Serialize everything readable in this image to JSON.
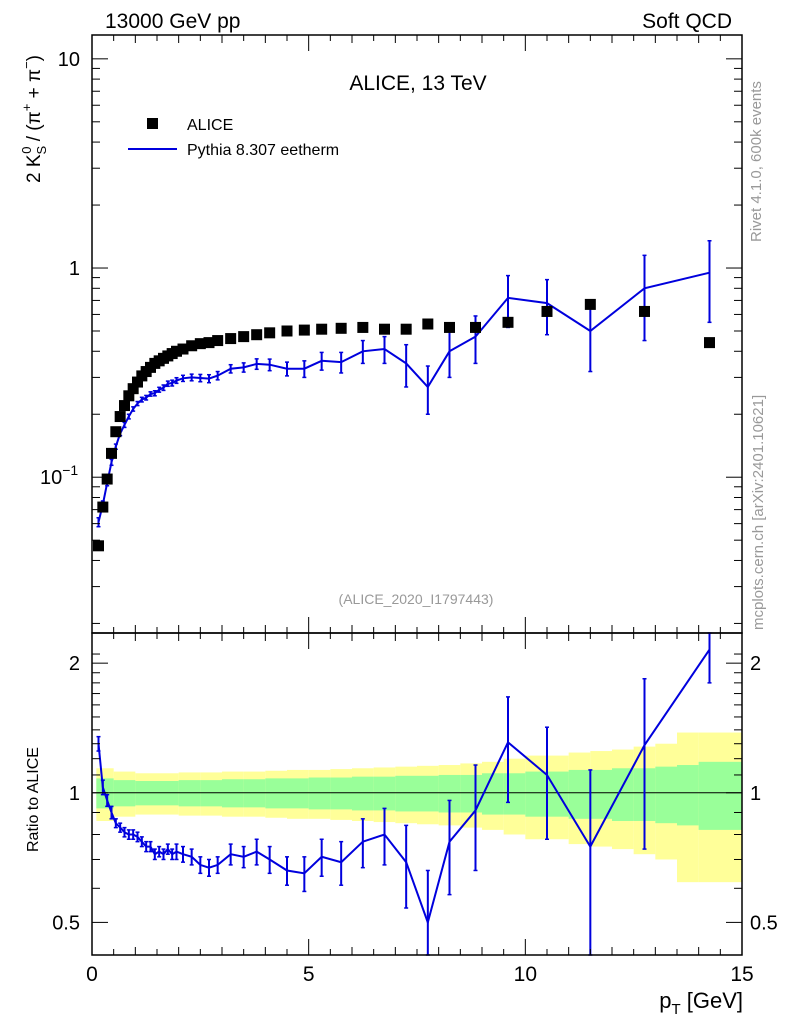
{
  "header": {
    "left": "13000 GeV pp",
    "right": "Soft QCD"
  },
  "side_labels": {
    "rivet": "Rivet 4.1.0,  600k events",
    "mcplots": "mcplots.cern.ch [arXiv:2401.10621]"
  },
  "colors": {
    "data": "#000000",
    "mc": "#0000dd",
    "band_inner": "#99ff99",
    "band_outer": "#ffff99"
  },
  "chart_data": [
    {
      "type": "scatter",
      "panel": "main",
      "title": "ALICE, 13 TeV",
      "analysis_id": "(ALICE_2020_I1797443)",
      "ylabel": "2 K_S^0 / (π+ + π−)",
      "ylabel_parts": {
        "main": "2 K",
        "sub": "S",
        "sup": "0",
        "rest": " / (π",
        "plus_sup": "+",
        "mid": " + π",
        "minus_sup": "−",
        "end": ")"
      },
      "yscale": "log",
      "ylim": [
        0.018,
        13
      ],
      "xlim": [
        0,
        15
      ],
      "y_ticks": [
        {
          "value": 0.1,
          "label": "10",
          "sup": "−1"
        },
        {
          "value": 1,
          "label": "1",
          "sup": ""
        },
        {
          "value": 10,
          "label": "10",
          "sup": ""
        }
      ],
      "legend": {
        "position": "top-left",
        "entries": [
          {
            "label": "ALICE",
            "style": "square-marker"
          },
          {
            "label": "Pythia 8.307 eetherm",
            "style": "line"
          }
        ]
      },
      "series": [
        {
          "name": "ALICE",
          "x": [
            0.15,
            0.25,
            0.35,
            0.45,
            0.55,
            0.65,
            0.75,
            0.85,
            0.95,
            1.05,
            1.15,
            1.25,
            1.35,
            1.45,
            1.55,
            1.65,
            1.75,
            1.85,
            1.95,
            2.1,
            2.3,
            2.5,
            2.7,
            2.9,
            3.2,
            3.5,
            3.8,
            4.1,
            4.5,
            4.9,
            5.3,
            5.75,
            6.25,
            6.75,
            7.25,
            7.75,
            8.25,
            8.85,
            9.6,
            10.5,
            11.5,
            12.75,
            14.25
          ],
          "y": [
            0.047,
            0.072,
            0.098,
            0.13,
            0.165,
            0.195,
            0.22,
            0.245,
            0.265,
            0.285,
            0.305,
            0.32,
            0.335,
            0.35,
            0.36,
            0.37,
            0.38,
            0.39,
            0.4,
            0.41,
            0.425,
            0.435,
            0.44,
            0.45,
            0.46,
            0.47,
            0.48,
            0.49,
            0.5,
            0.505,
            0.51,
            0.515,
            0.52,
            0.51,
            0.51,
            0.54,
            0.52,
            0.52,
            0.55,
            0.62,
            0.67,
            0.62,
            0.44
          ]
        },
        {
          "name": "Pythia 8.307 eetherm",
          "x": [
            0.15,
            0.25,
            0.35,
            0.45,
            0.55,
            0.65,
            0.75,
            0.85,
            0.95,
            1.05,
            1.15,
            1.25,
            1.35,
            1.45,
            1.55,
            1.65,
            1.75,
            1.85,
            1.95,
            2.1,
            2.3,
            2.5,
            2.7,
            2.9,
            3.2,
            3.5,
            3.8,
            4.1,
            4.5,
            4.9,
            5.3,
            5.75,
            6.25,
            6.75,
            7.25,
            7.75,
            8.25,
            8.85,
            9.6,
            10.5,
            11.5,
            12.75,
            14.25
          ],
          "y": [
            0.061,
            0.074,
            0.094,
            0.118,
            0.14,
            0.162,
            0.178,
            0.195,
            0.212,
            0.225,
            0.235,
            0.24,
            0.25,
            0.252,
            0.262,
            0.268,
            0.28,
            0.282,
            0.29,
            0.297,
            0.3,
            0.298,
            0.296,
            0.306,
            0.33,
            0.335,
            0.348,
            0.345,
            0.33,
            0.33,
            0.36,
            0.355,
            0.4,
            0.41,
            0.35,
            0.27,
            0.4,
            0.47,
            0.72,
            0.68,
            0.5,
            0.8,
            0.95
          ],
          "yerr": [
            0.003,
            0.003,
            0.003,
            0.004,
            0.004,
            0.004,
            0.005,
            0.005,
            0.005,
            0.005,
            0.006,
            0.006,
            0.006,
            0.007,
            0.007,
            0.008,
            0.008,
            0.009,
            0.009,
            0.01,
            0.011,
            0.012,
            0.013,
            0.014,
            0.015,
            0.017,
            0.02,
            0.022,
            0.025,
            0.03,
            0.035,
            0.04,
            0.05,
            0.06,
            0.08,
            0.07,
            0.1,
            0.12,
            0.2,
            0.2,
            0.18,
            0.35,
            0.4
          ]
        }
      ]
    },
    {
      "type": "line",
      "panel": "ratio",
      "ylabel": "Ratio to ALICE",
      "xlabel": "p_T [GeV]",
      "xlabel_parts": {
        "main": "p",
        "sub": "T",
        "rest": " [GeV]"
      },
      "yscale": "log",
      "ylim": [
        0.42,
        2.35
      ],
      "xlim": [
        0,
        15
      ],
      "x_ticks": [
        0,
        5,
        10,
        15
      ],
      "y_ticks": [
        0.5,
        1,
        2
      ],
      "reference_line": 1,
      "bands": {
        "edges": [
          0.1,
          0.5,
          1.0,
          1.5,
          2.0,
          2.5,
          3.0,
          3.5,
          4.0,
          4.5,
          5.0,
          5.5,
          6.0,
          6.5,
          7.0,
          7.5,
          8.0,
          8.5,
          9.0,
          9.5,
          10.0,
          10.5,
          11.0,
          11.5,
          12.0,
          12.5,
          13.0,
          13.5,
          14.0,
          15.0
        ],
        "inner": [
          0.08,
          0.07,
          0.065,
          0.065,
          0.07,
          0.07,
          0.075,
          0.075,
          0.08,
          0.08,
          0.085,
          0.085,
          0.09,
          0.09,
          0.095,
          0.095,
          0.1,
          0.1,
          0.11,
          0.11,
          0.12,
          0.12,
          0.13,
          0.13,
          0.14,
          0.14,
          0.15,
          0.16,
          0.18
        ],
        "outer": [
          0.14,
          0.12,
          0.11,
          0.11,
          0.115,
          0.115,
          0.12,
          0.12,
          0.125,
          0.13,
          0.13,
          0.135,
          0.14,
          0.145,
          0.15,
          0.155,
          0.16,
          0.17,
          0.18,
          0.2,
          0.22,
          0.22,
          0.24,
          0.25,
          0.26,
          0.28,
          0.3,
          0.38,
          0.38
        ]
      },
      "series": [
        {
          "name": "Pythia 8.307 eetherm / ALICE",
          "x": [
            0.15,
            0.25,
            0.35,
            0.45,
            0.55,
            0.65,
            0.75,
            0.85,
            0.95,
            1.05,
            1.15,
            1.25,
            1.35,
            1.45,
            1.55,
            1.65,
            1.75,
            1.85,
            1.95,
            2.1,
            2.3,
            2.5,
            2.7,
            2.9,
            3.2,
            3.5,
            3.8,
            4.1,
            4.5,
            4.9,
            5.3,
            5.75,
            6.25,
            6.75,
            7.25,
            7.75,
            8.25,
            8.85,
            9.6,
            10.5,
            11.5,
            12.75,
            14.25
          ],
          "y": [
            1.3,
            1.03,
            0.96,
            0.9,
            0.85,
            0.83,
            0.81,
            0.8,
            0.8,
            0.79,
            0.77,
            0.75,
            0.75,
            0.72,
            0.73,
            0.72,
            0.74,
            0.72,
            0.73,
            0.72,
            0.71,
            0.68,
            0.67,
            0.68,
            0.72,
            0.71,
            0.73,
            0.7,
            0.66,
            0.65,
            0.71,
            0.69,
            0.77,
            0.8,
            0.69,
            0.5,
            0.77,
            0.91,
            1.31,
            1.1,
            0.75,
            1.29,
            2.15
          ],
          "yerr": [
            0.05,
            0.04,
            0.03,
            0.03,
            0.02,
            0.02,
            0.02,
            0.02,
            0.02,
            0.02,
            0.02,
            0.02,
            0.02,
            0.02,
            0.02,
            0.02,
            0.02,
            0.02,
            0.03,
            0.03,
            0.03,
            0.03,
            0.03,
            0.03,
            0.04,
            0.04,
            0.05,
            0.05,
            0.05,
            0.06,
            0.07,
            0.08,
            0.1,
            0.12,
            0.15,
            0.16,
            0.19,
            0.25,
            0.36,
            0.32,
            0.38,
            0.55,
            0.35
          ]
        }
      ]
    }
  ]
}
